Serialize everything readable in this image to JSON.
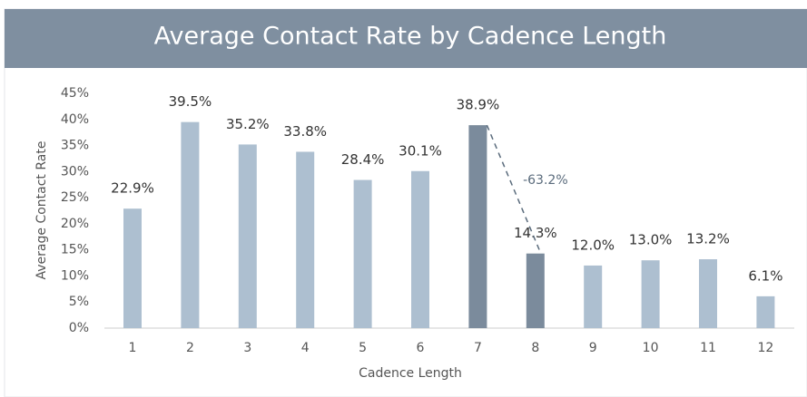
{
  "chart_data": {
    "type": "bar",
    "title": "Average Contact Rate by Cadence Length",
    "x_label": "Cadence Length",
    "y_label": "Average Contact Rate",
    "categories": [
      "1",
      "2",
      "3",
      "4",
      "5",
      "6",
      "7",
      "8",
      "9",
      "10",
      "11",
      "12"
    ],
    "values": [
      22.9,
      39.5,
      35.2,
      33.8,
      28.4,
      30.1,
      38.9,
      14.3,
      12.0,
      13.0,
      13.2,
      6.1
    ],
    "value_labels": [
      "22.9%",
      "39.5%",
      "35.2%",
      "33.8%",
      "28.4%",
      "30.1%",
      "38.9%",
      "14.3%",
      "12.0%",
      "13.0%",
      "13.2%",
      "6.1%"
    ],
    "colors": [
      "#adbfd0",
      "#adbfd0",
      "#adbfd0",
      "#adbfd0",
      "#adbfd0",
      "#adbfd0",
      "#7b8b9c",
      "#7b8b9c",
      "#adbfd0",
      "#adbfd0",
      "#adbfd0",
      "#adbfd0"
    ],
    "annotation": "-63.2%",
    "ylim": [
      0,
      45
    ],
    "yticks": [
      {
        "value": 0,
        "label": "0%"
      },
      {
        "value": 5,
        "label": "5%"
      },
      {
        "value": 10,
        "label": "10%"
      },
      {
        "value": 15,
        "label": "15%"
      },
      {
        "value": 20,
        "label": "20%"
      },
      {
        "value": 25,
        "label": "25%"
      },
      {
        "value": 30,
        "label": "30%"
      },
      {
        "value": 35,
        "label": "35%"
      },
      {
        "value": 40,
        "label": "40%"
      },
      {
        "value": 45,
        "label": "45%"
      }
    ],
    "grid": false
  }
}
